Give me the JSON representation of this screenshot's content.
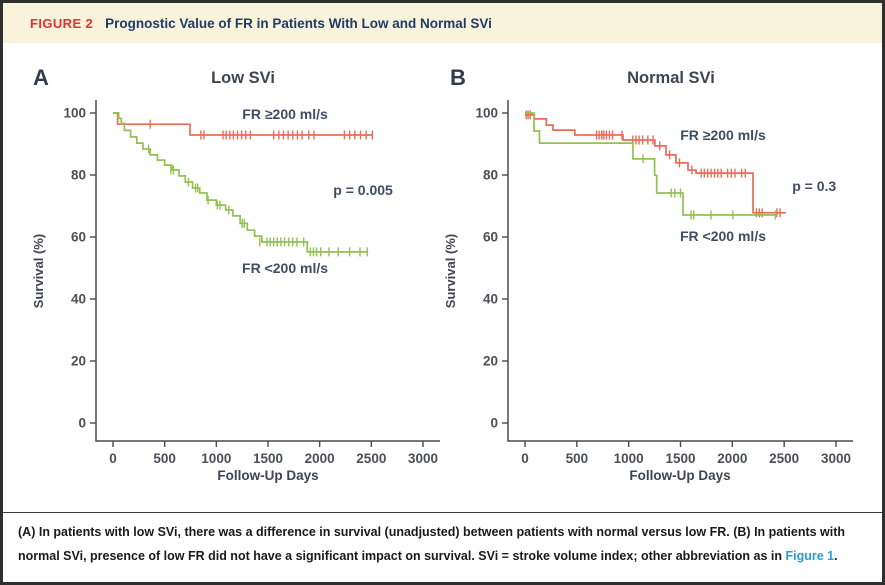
{
  "header": {
    "tag": "FIGURE 2",
    "title": "Prognostic Value of FR in Patients With Low and Normal SVi"
  },
  "caption": {
    "a_label": "(A)",
    "a_text": "In patients with low SVi, there was a difference in survival (unadjusted) between patients with normal versus low FR.",
    "b_label": "(B)",
    "b_text": "In patients with normal SVi, presence of low FR did not have a significant impact on survival. SVi = stroke volume index; other abbreviation as in",
    "link_text": "Figure 1",
    "period": "."
  },
  "colors": {
    "header_bg": "#faf3dc",
    "figure_tag_red": "#e5312b",
    "title_navy": "#1e3c64",
    "link_blue": "#2a9fd8",
    "curve_red": "#ec6c59",
    "curve_green": "#93c154",
    "axis_gray": "#4a4a4a",
    "label_slate": "#3f4c63"
  },
  "chart_data": [
    {
      "type": "line",
      "subtype": "kaplan-meier-step",
      "panel_letter": "A",
      "title": "Low SVi",
      "xlabel": "Follow-Up Days",
      "ylabel": "Survival (%)",
      "xlim": [
        0,
        3000
      ],
      "ylim": [
        0,
        100
      ],
      "xticks": [
        0,
        500,
        1000,
        1500,
        2000,
        2500,
        3000
      ],
      "yticks": [
        0,
        20,
        40,
        60,
        80,
        100
      ],
      "grid": false,
      "legend_position": "inline-labels",
      "p_label": {
        "text": "p = 0.005",
        "day": 2420,
        "pct": 73.5
      },
      "series": [
        {
          "name": "FR ≥200 ml/s",
          "color": "#ec6c59",
          "label_day": 1665,
          "label_pct": 98.1,
          "steps": [
            [
              0,
              100
            ],
            [
              45,
              96.4
            ],
            [
              745,
              92.9
            ],
            [
              2517,
              92.9
            ]
          ],
          "censors": [
            [
              360,
              96.4
            ],
            [
              850,
              92.9
            ],
            [
              880,
              92.9
            ],
            [
              1065,
              92.9
            ],
            [
              1095,
              92.9
            ],
            [
              1130,
              92.9
            ],
            [
              1165,
              92.9
            ],
            [
              1205,
              92.9
            ],
            [
              1245,
              92.9
            ],
            [
              1285,
              92.9
            ],
            [
              1330,
              92.9
            ],
            [
              1555,
              92.9
            ],
            [
              1605,
              92.9
            ],
            [
              1650,
              92.9
            ],
            [
              1695,
              92.9
            ],
            [
              1740,
              92.9
            ],
            [
              1785,
              92.9
            ],
            [
              1830,
              92.9
            ],
            [
              1895,
              92.9
            ],
            [
              1945,
              92.9
            ],
            [
              2240,
              92.9
            ],
            [
              2290,
              92.9
            ],
            [
              2340,
              92.9
            ],
            [
              2395,
              92.9
            ],
            [
              2450,
              92.9
            ],
            [
              2510,
              92.9
            ]
          ]
        },
        {
          "name": "FR <200 ml/s",
          "color": "#93c154",
          "label_day": 1665,
          "label_pct": 48.4,
          "steps": [
            [
              0,
              100
            ],
            [
              55,
              98.3
            ],
            [
              80,
              96.6
            ],
            [
              110,
              94.4
            ],
            [
              170,
              92.3
            ],
            [
              230,
              90.3
            ],
            [
              290,
              88.4
            ],
            [
              360,
              86.5
            ],
            [
              430,
              84.8
            ],
            [
              500,
              83.2
            ],
            [
              570,
              81.6
            ],
            [
              640,
              79.7
            ],
            [
              700,
              77.7
            ],
            [
              770,
              75.8
            ],
            [
              840,
              74.2
            ],
            [
              910,
              71.9
            ],
            [
              1000,
              70.3
            ],
            [
              1090,
              68.7
            ],
            [
              1160,
              66.8
            ],
            [
              1230,
              64.4
            ],
            [
              1300,
              62.2
            ],
            [
              1370,
              60.3
            ],
            [
              1440,
              58.4
            ],
            [
              1880,
              55.2
            ],
            [
              2470,
              55.2
            ]
          ],
          "censors": [
            [
              345,
              88.4
            ],
            [
              560,
              81.6
            ],
            [
              585,
              81.6
            ],
            [
              730,
              77.7
            ],
            [
              800,
              75.8
            ],
            [
              820,
              75.8
            ],
            [
              920,
              71.9
            ],
            [
              1010,
              70.3
            ],
            [
              1035,
              70.3
            ],
            [
              1120,
              68.7
            ],
            [
              1250,
              64.4
            ],
            [
              1270,
              64.4
            ],
            [
              1420,
              58.4
            ],
            [
              1490,
              58.4
            ],
            [
              1520,
              58.4
            ],
            [
              1555,
              58.4
            ],
            [
              1590,
              58.4
            ],
            [
              1625,
              58.4
            ],
            [
              1660,
              58.4
            ],
            [
              1700,
              58.4
            ],
            [
              1740,
              58.4
            ],
            [
              1780,
              58.4
            ],
            [
              1845,
              58.4
            ],
            [
              1910,
              55.2
            ],
            [
              1940,
              55.2
            ],
            [
              1970,
              55.2
            ],
            [
              2010,
              55.2
            ],
            [
              2090,
              55.2
            ],
            [
              2180,
              55.2
            ],
            [
              2290,
              55.2
            ],
            [
              2390,
              55.2
            ],
            [
              2460,
              55.2
            ]
          ]
        }
      ]
    },
    {
      "type": "line",
      "subtype": "kaplan-meier-step",
      "panel_letter": "B",
      "title": "Normal SVi",
      "xlabel": "Follow-Up Days",
      "ylabel": "Survival (%)",
      "xlim": [
        0,
        3000
      ],
      "ylim": [
        0,
        100
      ],
      "xticks": [
        0,
        500,
        1000,
        1500,
        2000,
        2500,
        3000
      ],
      "yticks": [
        0,
        20,
        40,
        60,
        80,
        100
      ],
      "grid": false,
      "legend_position": "inline-labels",
      "p_label": {
        "text": "p = 0.3",
        "day": 2790,
        "pct": 74.8
      },
      "series": [
        {
          "name": "FR ≥200 ml/s",
          "color": "#ec6c59",
          "label_day": 1910,
          "label_pct": 91.3,
          "steps": [
            [
              0,
              99.4
            ],
            [
              90,
              98.1
            ],
            [
              205,
              96.1
            ],
            [
              270,
              94.5
            ],
            [
              480,
              92.9
            ],
            [
              945,
              91.3
            ],
            [
              1253,
              89.4
            ],
            [
              1360,
              86.5
            ],
            [
              1456,
              83.9
            ],
            [
              1572,
              81.6
            ],
            [
              1650,
              80.6
            ],
            [
              2199,
              67.8
            ],
            [
              2517,
              67.8
            ]
          ],
          "censors": [
            [
              12,
              99.4
            ],
            [
              30,
              99.4
            ],
            [
              50,
              99.4
            ],
            [
              690,
              92.9
            ],
            [
              715,
              92.9
            ],
            [
              740,
              92.9
            ],
            [
              760,
              92.9
            ],
            [
              785,
              92.9
            ],
            [
              815,
              92.9
            ],
            [
              845,
              92.9
            ],
            [
              935,
              92.9
            ],
            [
              1040,
              91.3
            ],
            [
              1070,
              91.3
            ],
            [
              1100,
              91.3
            ],
            [
              1135,
              91.3
            ],
            [
              1185,
              91.3
            ],
            [
              1235,
              91.3
            ],
            [
              1300,
              89.4
            ],
            [
              1395,
              86.5
            ],
            [
              1490,
              83.9
            ],
            [
              1610,
              81.6
            ],
            [
              1700,
              80.6
            ],
            [
              1730,
              80.6
            ],
            [
              1762,
              80.6
            ],
            [
              1795,
              80.6
            ],
            [
              1828,
              80.6
            ],
            [
              1860,
              80.6
            ],
            [
              1893,
              80.6
            ],
            [
              1955,
              80.6
            ],
            [
              1990,
              80.6
            ],
            [
              2025,
              80.6
            ],
            [
              2090,
              80.6
            ],
            [
              2125,
              80.6
            ],
            [
              2232,
              67.8
            ],
            [
              2260,
              67.8
            ],
            [
              2288,
              67.8
            ],
            [
              2430,
              67.8
            ],
            [
              2460,
              67.8
            ]
          ]
        },
        {
          "name": "FR <200 ml/s",
          "color": "#93c154",
          "label_day": 1910,
          "label_pct": 58.7,
          "steps": [
            [
              0,
              100
            ],
            [
              87,
              94.2
            ],
            [
              140,
              90.3
            ],
            [
              1042,
              85.2
            ],
            [
              1250,
              79.9
            ],
            [
              1270,
              74.2
            ],
            [
              1524,
              67.1
            ],
            [
              2420,
              67.1
            ]
          ],
          "censors": [
            [
              1138,
              85.2
            ],
            [
              1410,
              74.2
            ],
            [
              1445,
              74.2
            ],
            [
              1500,
              74.2
            ],
            [
              1601,
              67.1
            ],
            [
              1628,
              67.1
            ],
            [
              1794,
              67.1
            ],
            [
              2006,
              67.1
            ],
            [
              2415,
              67.1
            ]
          ]
        }
      ]
    }
  ]
}
